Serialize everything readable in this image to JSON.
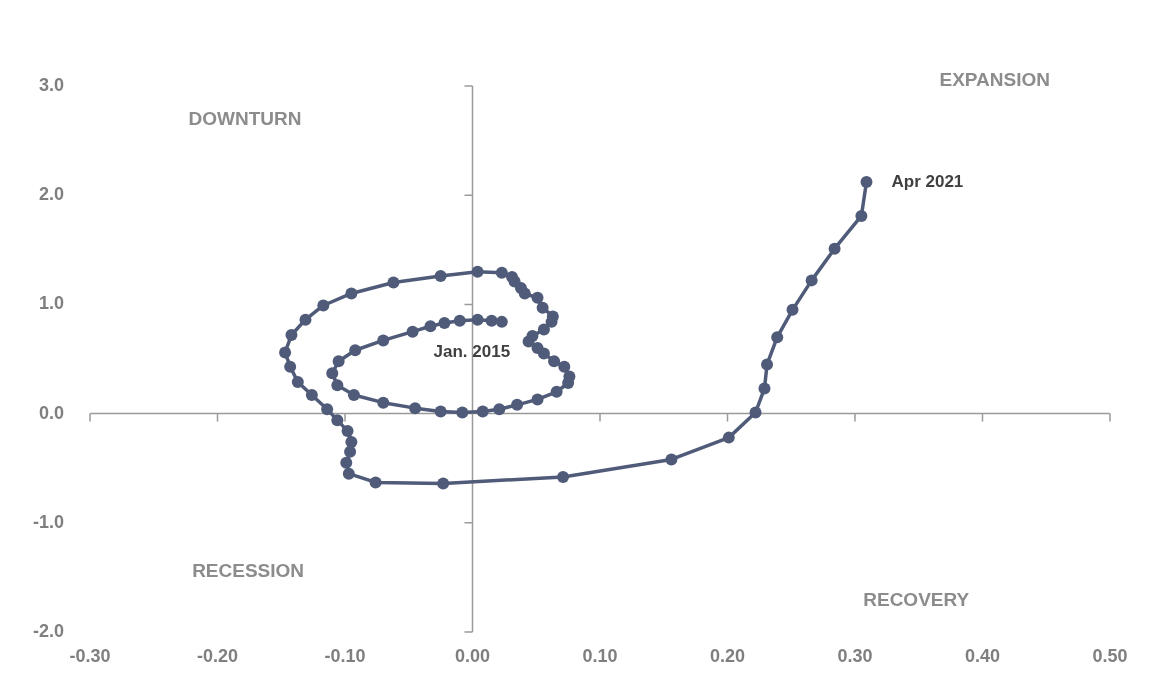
{
  "chart_data": {
    "type": "line",
    "marker": "circle",
    "line_style": "solid",
    "color": "#4f5b78",
    "x": [
      0.023,
      0.015,
      0.004,
      -0.01,
      -0.022,
      -0.033,
      -0.047,
      -0.07,
      -0.092,
      -0.105,
      -0.11,
      -0.106,
      -0.093,
      -0.07,
      -0.045,
      -0.025,
      -0.008,
      0.008,
      0.021,
      0.035,
      0.051,
      0.066,
      0.075,
      0.076,
      0.072,
      0.064,
      0.056,
      0.051,
      0.044,
      0.047,
      0.056,
      0.062,
      0.063,
      0.055,
      0.051,
      0.041,
      0.038,
      0.033,
      0.031,
      0.023,
      0.004,
      -0.025,
      -0.062,
      -0.095,
      -0.117,
      -0.131,
      -0.142,
      -0.147,
      -0.143,
      -0.137,
      -0.126,
      -0.114,
      -0.106,
      -0.098,
      -0.095,
      -0.096,
      -0.099,
      -0.097,
      -0.076,
      -0.023,
      0.071,
      0.156,
      0.201,
      0.222,
      0.229,
      0.231,
      0.239,
      0.251,
      0.266,
      0.284,
      0.305,
      0.309
    ],
    "values": [
      0.84,
      0.85,
      0.86,
      0.85,
      0.83,
      0.8,
      0.75,
      0.67,
      0.58,
      0.48,
      0.37,
      0.26,
      0.17,
      0.1,
      0.05,
      0.02,
      0.01,
      0.02,
      0.04,
      0.08,
      0.13,
      0.2,
      0.28,
      0.34,
      0.43,
      0.48,
      0.55,
      0.6,
      0.66,
      0.71,
      0.77,
      0.84,
      0.89,
      0.97,
      1.06,
      1.1,
      1.15,
      1.21,
      1.25,
      1.29,
      1.3,
      1.26,
      1.2,
      1.1,
      0.99,
      0.86,
      0.72,
      0.56,
      0.43,
      0.29,
      0.17,
      0.04,
      -0.06,
      -0.16,
      -0.26,
      -0.35,
      -0.45,
      -0.55,
      -0.63,
      -0.64,
      -0.58,
      -0.42,
      -0.22,
      0.01,
      0.23,
      0.45,
      0.7,
      0.95,
      1.22,
      1.51,
      1.81,
      2.12
    ],
    "xlim": [
      -0.3,
      0.5
    ],
    "xticks": [
      {
        "value": -0.3,
        "label": "-0.30"
      },
      {
        "value": -0.2,
        "label": "-0.20"
      },
      {
        "value": -0.1,
        "label": "-0.10"
      },
      {
        "value": 0,
        "label": "0.00"
      },
      {
        "value": 0.1,
        "label": "0.10"
      },
      {
        "value": 0.2,
        "label": "0.20"
      },
      {
        "value": 0.3,
        "label": "0.30"
      },
      {
        "value": 0.4,
        "label": "0.40"
      },
      {
        "value": 0.5,
        "label": "0.50"
      }
    ],
    "ylim": [
      -2,
      3
    ],
    "yticks": [
      {
        "value": -2,
        "label": "-2.0"
      },
      {
        "value": -1,
        "label": "-1.0"
      },
      {
        "value": 0,
        "label": "0.0"
      },
      {
        "value": 1,
        "label": "1.0"
      },
      {
        "value": 2,
        "label": "2.0"
      },
      {
        "value": 3,
        "label": "3.0"
      }
    ],
    "legend": false,
    "annotations": [
      {
        "text": "Jan. 2015",
        "x": 0.023,
        "y": 0.84
      },
      {
        "text": "Apr 2021",
        "x": 0.309,
        "y": 2.12
      },
      "DOWNTURN",
      "EXPANSION",
      "RECESSION",
      "RECOVERY"
    ]
  }
}
